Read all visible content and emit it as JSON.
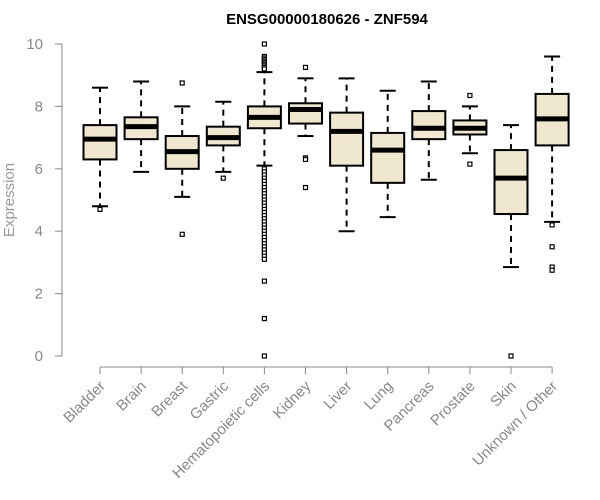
{
  "chart_data": {
    "type": "boxplot",
    "title": "ENSG00000180626 - ZNF594",
    "xlabel": "",
    "ylabel": "Expression",
    "ylim": [
      0,
      10
    ],
    "yticks": [
      0,
      2,
      4,
      6,
      8,
      10
    ],
    "box_fill": "#efe8cf",
    "box_stroke": "#000000",
    "categories": [
      "Bladder",
      "Brain",
      "Breast",
      "Gastric",
      "Hematopoietic cells",
      "Kidney",
      "Liver",
      "Lung",
      "Pancreas",
      "Prostate",
      "Skin",
      "Unknown / Other"
    ],
    "boxes": [
      {
        "whisker_low": 4.8,
        "q1": 6.3,
        "median": 6.95,
        "q3": 7.4,
        "whisker_high": 8.6,
        "outliers": [
          4.7
        ]
      },
      {
        "whisker_low": 5.9,
        "q1": 6.95,
        "median": 7.35,
        "q3": 7.65,
        "whisker_high": 8.8,
        "outliers": []
      },
      {
        "whisker_low": 5.1,
        "q1": 6.0,
        "median": 6.55,
        "q3": 7.05,
        "whisker_high": 8.0,
        "outliers": [
          3.9,
          8.75
        ]
      },
      {
        "whisker_low": 5.9,
        "q1": 6.75,
        "median": 7.0,
        "q3": 7.35,
        "whisker_high": 8.15,
        "outliers": [
          5.7
        ]
      },
      {
        "whisker_low": 6.1,
        "q1": 7.3,
        "median": 7.65,
        "q3": 8.0,
        "whisker_high": 9.1,
        "outliers": [
          10.0,
          9.6,
          9.55,
          9.5,
          9.45,
          9.4,
          9.35,
          9.3,
          9.25,
          9.2,
          6.0,
          5.9,
          5.8,
          5.7,
          5.6,
          5.5,
          5.4,
          5.3,
          5.2,
          5.1,
          5.0,
          4.9,
          4.8,
          4.7,
          4.6,
          4.5,
          4.4,
          4.3,
          4.2,
          4.1,
          4.0,
          3.9,
          3.8,
          3.7,
          3.6,
          3.5,
          3.4,
          3.3,
          3.2,
          3.1,
          2.4,
          1.2,
          0.0
        ]
      },
      {
        "whisker_low": 7.05,
        "q1": 7.45,
        "median": 7.9,
        "q3": 8.1,
        "whisker_high": 8.9,
        "outliers": [
          9.25,
          6.35,
          6.3,
          5.4
        ]
      },
      {
        "whisker_low": 4.0,
        "q1": 6.1,
        "median": 7.2,
        "q3": 7.8,
        "whisker_high": 8.9,
        "outliers": []
      },
      {
        "whisker_low": 4.45,
        "q1": 5.55,
        "median": 6.6,
        "q3": 7.15,
        "whisker_high": 8.5,
        "outliers": []
      },
      {
        "whisker_low": 5.65,
        "q1": 6.95,
        "median": 7.3,
        "q3": 7.85,
        "whisker_high": 8.8,
        "outliers": []
      },
      {
        "whisker_low": 6.5,
        "q1": 7.1,
        "median": 7.3,
        "q3": 7.55,
        "whisker_high": 8.0,
        "outliers": [
          8.35,
          6.15
        ]
      },
      {
        "whisker_low": 2.85,
        "q1": 4.55,
        "median": 5.7,
        "q3": 6.6,
        "whisker_high": 7.4,
        "outliers": [
          0.0
        ]
      },
      {
        "whisker_low": 4.3,
        "q1": 6.75,
        "median": 7.6,
        "q3": 8.4,
        "whisker_high": 9.6,
        "outliers": [
          4.2,
          3.5,
          2.85,
          2.75
        ]
      }
    ]
  }
}
